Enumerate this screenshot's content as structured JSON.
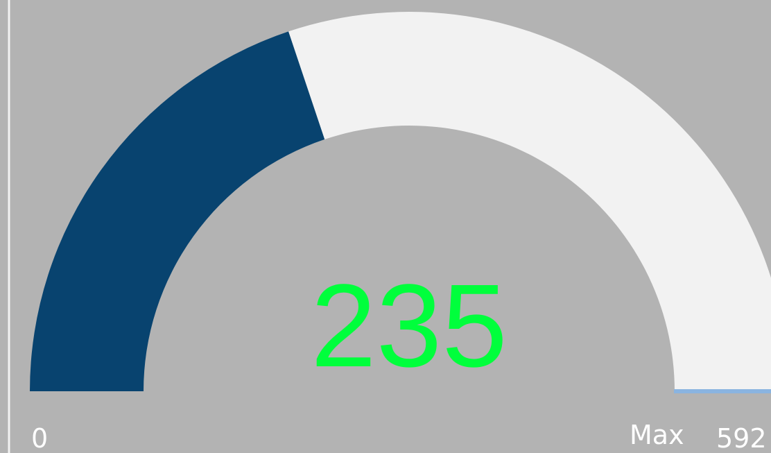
{
  "chart_data": {
    "type": "gauge",
    "value": 235,
    "min": 0,
    "max": 592,
    "max_label": "Max",
    "fill_color": "#08436f",
    "track_color": "#f2f2f2",
    "value_color": "#00ff3c"
  }
}
